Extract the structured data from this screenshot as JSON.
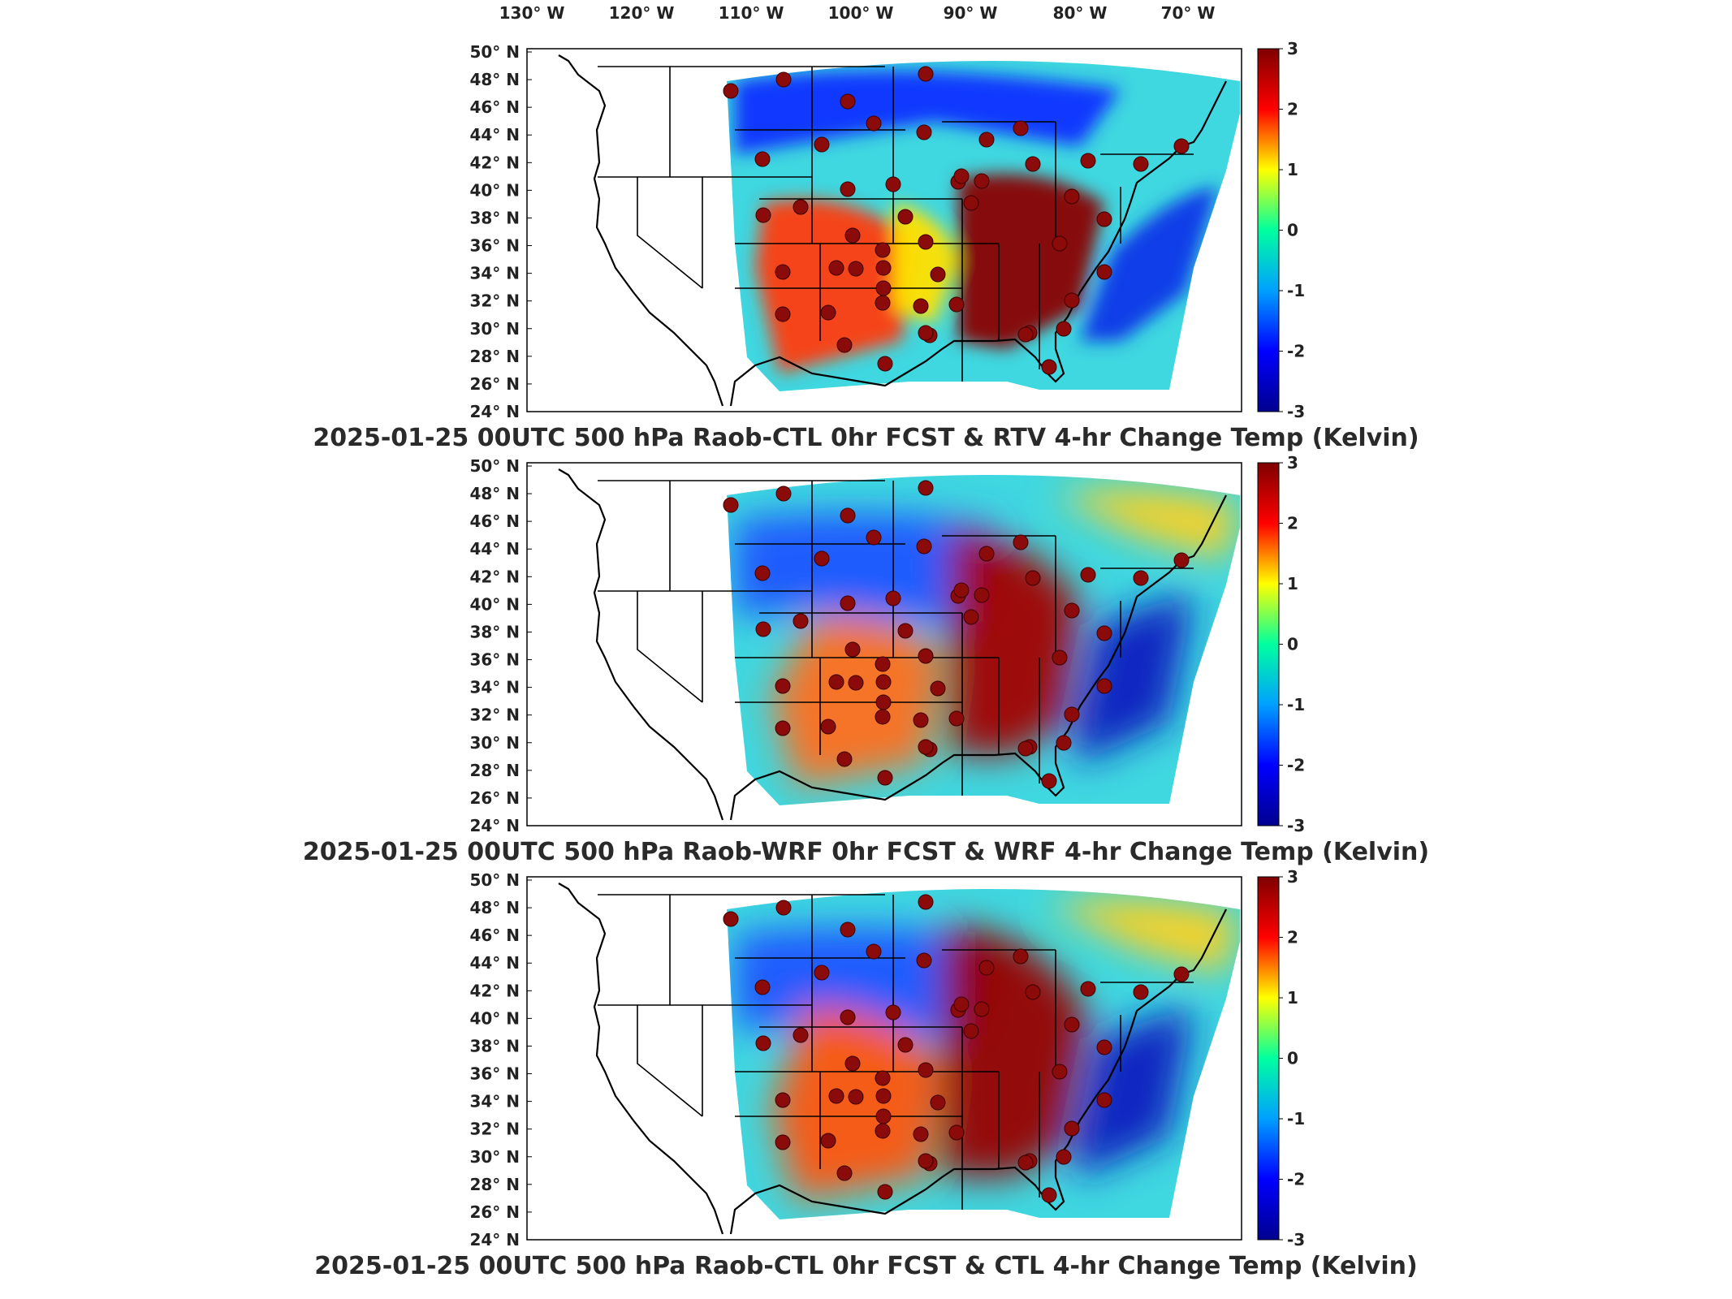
{
  "lon_labels": [
    "130° W",
    "120° W",
    "110° W",
    "100° W",
    "90° W",
    "80° W",
    "70° W"
  ],
  "lat_labels": [
    "50° N",
    "48° N",
    "46° N",
    "44° N",
    "42° N",
    "40° N",
    "38° N",
    "36° N",
    "34° N",
    "32° N",
    "30° N",
    "28° N",
    "26° N",
    "24° N"
  ],
  "colorbar": {
    "ticks": [
      "3",
      "2",
      "1",
      "0",
      "-1",
      "-2",
      "-3"
    ],
    "colors": [
      "#7f0000",
      "#ff0000",
      "#ffff00",
      "#00ffa0",
      "#00a0ff",
      "#0000ff",
      "#00008f"
    ]
  },
  "panels": [
    {
      "title": "2025-01-25 00UTC 500 hPa Raob-CTL 0hr FCST & RTV 4-hr Change Temp (Kelvin)"
    },
    {
      "title": "2025-01-25 00UTC 500 hPa Raob-WRF 0hr FCST & WRF 4-hr Change Temp (Kelvin)"
    },
    {
      "title": "2025-01-25 00UTC 500 hPa Raob-CTL 0hr FCST & CTL 4-hr Change Temp (Kelvin)"
    }
  ],
  "station_color": "#8b0a0a"
}
